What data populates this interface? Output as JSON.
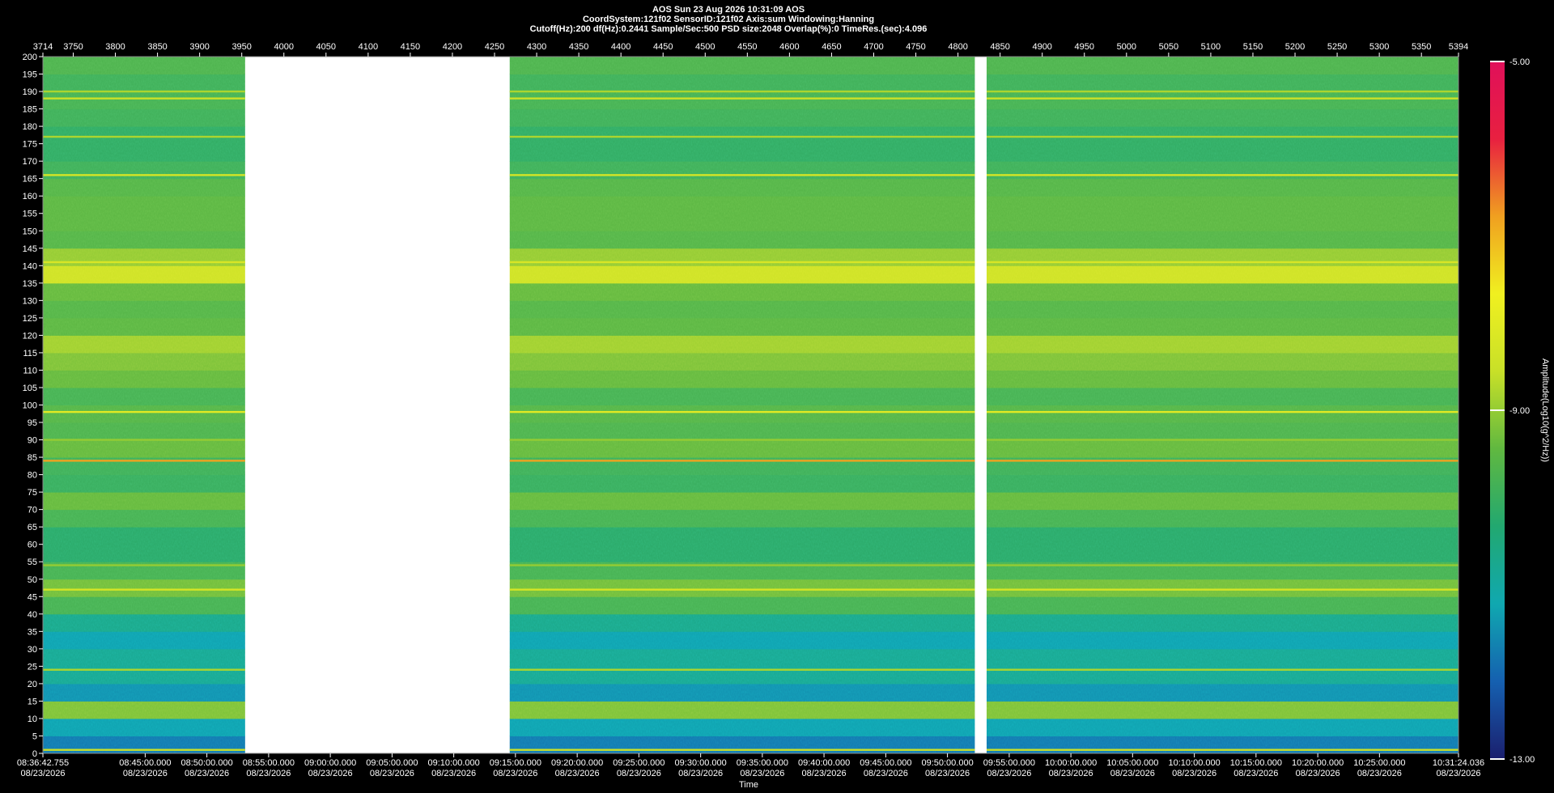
{
  "chart_data": {
    "type": "heatmap",
    "header": [
      "AOS  Sun 23 Aug 2026 10:31:09  AOS",
      "CoordSystem:121f02   SensorID:121f02   Axis:sum   Windowing:Hanning",
      "Cutoff(Hz):200    df(Hz):0.2441    Sample/Sec:500    PSD size:2048    Overlap(%):0    TimeRes.(sec):4.096"
    ],
    "x_label": "Time",
    "colorbar_label": "Amplitude(Log10(g^2/Hz))",
    "xlim": [
      3714,
      5394
    ],
    "ylim": [
      0,
      200
    ],
    "clim": [
      -13,
      -5
    ],
    "xticks_top": [
      3714,
      3750,
      3800,
      3850,
      3900,
      3950,
      4000,
      4050,
      4100,
      4150,
      4200,
      4250,
      4300,
      4350,
      4400,
      4450,
      4500,
      4550,
      4600,
      4650,
      4700,
      4750,
      4800,
      4850,
      4900,
      4950,
      5000,
      5050,
      5100,
      5150,
      5200,
      5250,
      5300,
      5350,
      5394
    ],
    "xticks": [
      {
        "value": 3714,
        "label": "08:36:42.755\n08/23/2026"
      },
      {
        "value": 3835.4,
        "label": "08:45:00.000\n08/23/2026"
      },
      {
        "value": 3908.6,
        "label": "08:50:00.000\n08/23/2026"
      },
      {
        "value": 3981.9,
        "label": "08:55:00.000\n08/23/2026"
      },
      {
        "value": 4055.1,
        "label": "09:00:00.000\n08/23/2026"
      },
      {
        "value": 4128.4,
        "label": "09:05:00.000\n08/23/2026"
      },
      {
        "value": 4201.6,
        "label": "09:10:00.000\n08/23/2026"
      },
      {
        "value": 4274.8,
        "label": "09:15:00.000\n08/23/2026"
      },
      {
        "value": 4348.1,
        "label": "09:20:00.000\n08/23/2026"
      },
      {
        "value": 4421.3,
        "label": "09:25:00.000\n08/23/2026"
      },
      {
        "value": 4494.6,
        "label": "09:30:00.000\n08/23/2026"
      },
      {
        "value": 4567.8,
        "label": "09:35:00.000\n08/23/2026"
      },
      {
        "value": 4641.0,
        "label": "09:40:00.000\n08/23/2026"
      },
      {
        "value": 4714.3,
        "label": "09:45:00.000\n08/23/2026"
      },
      {
        "value": 4787.5,
        "label": "09:50:00.000\n08/23/2026"
      },
      {
        "value": 4860.8,
        "label": "09:55:00.000\n08/23/2026"
      },
      {
        "value": 4934.0,
        "label": "10:00:00.000\n08/23/2026"
      },
      {
        "value": 5007.2,
        "label": "10:05:00.000\n08/23/2026"
      },
      {
        "value": 5080.5,
        "label": "10:10:00.000\n08/23/2026"
      },
      {
        "value": 5153.7,
        "label": "10:15:00.000\n08/23/2026"
      },
      {
        "value": 5227.0,
        "label": "10:20:00.000\n08/23/2026"
      },
      {
        "value": 5300.2,
        "label": "10:25:00.000\n08/23/2026"
      },
      {
        "value": 5394,
        "label": "10:31:24.036\n08/23/2026"
      }
    ],
    "yticks": [
      0,
      5,
      10,
      15,
      20,
      25,
      30,
      35,
      40,
      45,
      50,
      55,
      60,
      65,
      70,
      75,
      80,
      85,
      90,
      95,
      100,
      105,
      110,
      115,
      120,
      125,
      130,
      135,
      140,
      145,
      150,
      155,
      160,
      165,
      170,
      175,
      180,
      185,
      190,
      195,
      200
    ],
    "cticks": [
      {
        "value": -5,
        "label": "-5.00"
      },
      {
        "value": -9,
        "label": "-9.00"
      },
      {
        "value": -13,
        "label": "-13.00"
      }
    ],
    "colors": [
      "#1b1f6e",
      "#1560b0",
      "#10a8b0",
      "#22a870",
      "#60b840",
      "#c8e028",
      "#f0f020",
      "#f0a020",
      "#e82040",
      "#e0105a"
    ],
    "data_segments": [
      [
        3714,
        3954
      ],
      [
        4268,
        4820
      ],
      [
        4834,
        5394
      ]
    ],
    "y_bins": [
      0,
      5,
      10,
      15,
      20,
      25,
      30,
      35,
      40,
      45,
      50,
      55,
      60,
      65,
      70,
      75,
      80,
      85,
      90,
      95,
      100,
      105,
      110,
      115,
      120,
      125,
      130,
      135,
      140,
      145,
      150,
      155,
      160,
      165,
      170,
      175,
      180,
      185,
      190,
      195,
      200
    ],
    "values": [
      -11.8,
      -11.3,
      -9.2,
      -11.5,
      -10.8,
      -10.8,
      -11.3,
      -10.7,
      -9.8,
      -9.3,
      -9.8,
      -10.2,
      -10.2,
      -9.8,
      -9.4,
      -10.0,
      -9.9,
      -9.4,
      -9.7,
      -9.6,
      -9.8,
      -9.4,
      -9.2,
      -8.9,
      -9.5,
      -9.6,
      -9.4,
      -8.4,
      -9.0,
      -9.6,
      -9.5,
      -9.5,
      -9.6,
      -9.9,
      -10.1,
      -10.1,
      -9.9,
      -9.8,
      -9.9,
      -9.7
    ],
    "lines": {
      "freq": [
        1,
        24,
        47,
        54,
        84,
        90,
        98,
        141,
        166,
        177,
        188,
        190
      ],
      "values": [
        -8.5,
        -8.8,
        -8.3,
        -9.0,
        -6.8,
        -9.0,
        -8.0,
        -8.2,
        -8.3,
        -8.8,
        -8.5,
        -8.8
      ]
    },
    "plot_background": "#ffffff"
  }
}
